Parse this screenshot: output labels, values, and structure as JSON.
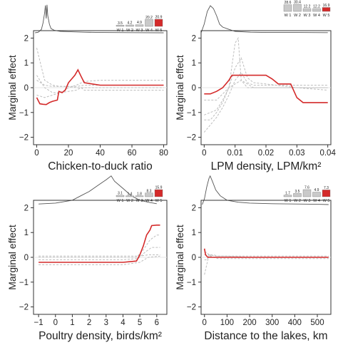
{
  "chart_data": [
    {
      "type": "line",
      "xlabel": "Chicken-to-duck ratio",
      "ylabel": "Marginal effect",
      "xlim": [
        -2,
        82
      ],
      "ylim": [
        -2.3,
        2.3
      ],
      "xticks": [
        0,
        20,
        40,
        60,
        80
      ],
      "xtick_labels": [
        "0",
        "20",
        "40",
        "60",
        "80"
      ],
      "yticks": [
        -2,
        -1,
        0,
        1,
        2
      ],
      "ytick_labels": [
        "−2",
        "−1",
        "0",
        "1",
        "2"
      ],
      "weights": {
        "names": [
          "W 1",
          "W 2",
          "W 3",
          "W 4",
          "W 5"
        ],
        "labels": [
          "3.5",
          "4.2",
          "4.9",
          "20.2",
          "20.9"
        ],
        "values": [
          3.5,
          4.2,
          4.9,
          20.2,
          20.9
        ]
      },
      "density": [
        [
          -1,
          0
        ],
        [
          1,
          0.02
        ],
        [
          3,
          0.12
        ],
        [
          4,
          0.35
        ],
        [
          5,
          0.7
        ],
        [
          5.5,
          0.96
        ],
        [
          6,
          0.5
        ],
        [
          6.5,
          0.98
        ],
        [
          7,
          0.6
        ],
        [
          8,
          0.3
        ],
        [
          9,
          0.15
        ],
        [
          11,
          0.09
        ],
        [
          15,
          0.05
        ],
        [
          20,
          0.04
        ],
        [
          25,
          0.03
        ],
        [
          30,
          0.02
        ],
        [
          40,
          0.01
        ],
        [
          60,
          0.005
        ],
        [
          80,
          0
        ]
      ],
      "series": [
        {
          "name": "",
          "x": [
            0,
            2,
            4,
            6,
            8,
            10,
            13,
            14,
            16,
            18,
            20,
            24,
            26,
            28,
            30,
            40,
            50,
            60,
            70,
            80
          ],
          "y": [
            -0.4,
            -0.65,
            -0.67,
            -0.68,
            -0.6,
            -0.55,
            -0.5,
            -0.15,
            -0.2,
            -0.1,
            0.2,
            0.5,
            0.72,
            0.45,
            0.2,
            0.1,
            0.1,
            0.1,
            0.1,
            0.1
          ]
        },
        {
          "name": "",
          "x": [
            0,
            5,
            10,
            15,
            20,
            25,
            28,
            30,
            40,
            60,
            80
          ],
          "y": [
            1.6,
            0.3,
            0.1,
            0.05,
            0.05,
            0.0,
            0.0,
            -0.1,
            -0.1,
            -0.1,
            -0.1
          ]
        },
        {
          "name": "",
          "x": [
            0,
            5,
            10,
            15,
            20,
            25,
            30,
            40,
            60,
            80
          ],
          "y": [
            0.5,
            0.0,
            -0.2,
            -0.2,
            0.0,
            0.1,
            0.25,
            0.3,
            0.3,
            0.3
          ]
        },
        {
          "name": "",
          "x": [
            0,
            5,
            10,
            15,
            20,
            25,
            28,
            30,
            40,
            60,
            80
          ],
          "y": [
            -0.3,
            -0.4,
            -0.3,
            -0.2,
            -0.15,
            -0.1,
            0.0,
            0.0,
            0.0,
            0.0,
            0.0
          ]
        },
        {
          "name": "",
          "x": [
            0,
            5,
            10,
            15,
            20,
            25,
            30,
            40,
            60,
            80
          ],
          "y": [
            0.3,
            0.1,
            0.05,
            0.05,
            0.05,
            0.05,
            0.1,
            0.1,
            0.1,
            0.1
          ]
        }
      ]
    },
    {
      "type": "line",
      "xlabel": "LPM density, LPM/km²",
      "ylabel": "Marginal effect",
      "xlim": [
        -0.001,
        0.041
      ],
      "ylim": [
        -2.3,
        2.3
      ],
      "xticks": [
        0,
        0.01,
        0.02,
        0.03,
        0.04
      ],
      "xtick_labels": [
        "0",
        "0.01",
        "0.02",
        "0.03",
        "0.04"
      ],
      "yticks": [
        -2,
        -1,
        0,
        1,
        2
      ],
      "ytick_labels": [
        "−2",
        "−1",
        "0",
        "1",
        "2"
      ],
      "weights": {
        "names": [
          "W 1",
          "W 2",
          "W 3",
          "W 4",
          "W 5"
        ],
        "labels": [
          "28.6",
          "30.4",
          "12.2",
          "12.2",
          "16.9"
        ],
        "values": [
          28.6,
          30.4,
          12.2,
          12.2,
          16.9
        ]
      },
      "density": [
        [
          -0.001,
          0
        ],
        [
          0,
          0.3
        ],
        [
          0.001,
          0.75
        ],
        [
          0.002,
          0.95
        ],
        [
          0.003,
          0.85
        ],
        [
          0.004,
          0.6
        ],
        [
          0.005,
          0.3
        ],
        [
          0.006,
          0.2
        ],
        [
          0.008,
          0.12
        ],
        [
          0.01,
          0.05
        ],
        [
          0.015,
          0.02
        ],
        [
          0.02,
          0.01
        ],
        [
          0.03,
          0.01
        ],
        [
          0.04,
          0.005
        ]
      ],
      "series": [
        {
          "name": "",
          "x": [
            0,
            0.002,
            0.004,
            0.006,
            0.008,
            0.009,
            0.012,
            0.016,
            0.02,
            0.022,
            0.024,
            0.028,
            0.03,
            0.032,
            0.04
          ],
          "y": [
            -0.25,
            -0.25,
            -0.15,
            0.0,
            0.3,
            0.5,
            0.5,
            0.5,
            0.5,
            0.35,
            0.15,
            0.15,
            -0.4,
            -0.6,
            -0.6
          ]
        },
        {
          "name": "",
          "x": [
            0,
            0.002,
            0.004,
            0.006,
            0.008,
            0.01,
            0.011,
            0.012,
            0.014,
            0.016,
            0.02,
            0.03,
            0.04
          ],
          "y": [
            -1.3,
            -1.3,
            -1.0,
            -0.6,
            0.0,
            1.8,
            2.0,
            0.3,
            0.0,
            0.0,
            0.0,
            0.0,
            0.0
          ]
        },
        {
          "name": "",
          "x": [
            0,
            0.002,
            0.004,
            0.006,
            0.008,
            0.01,
            0.012,
            0.014,
            0.016,
            0.02,
            0.03,
            0.04
          ],
          "y": [
            -1.8,
            -1.5,
            -1.2,
            -0.8,
            -0.3,
            0.3,
            0.6,
            0.2,
            0.1,
            0.1,
            0.1,
            0.1
          ]
        },
        {
          "name": "",
          "x": [
            0,
            0.002,
            0.004,
            0.006,
            0.008,
            0.01,
            0.012,
            0.014,
            0.016,
            0.02,
            0.03,
            0.04
          ],
          "y": [
            -1.1,
            -1.0,
            -0.9,
            -0.5,
            0.0,
            0.8,
            1.2,
            0.4,
            0.2,
            0.15,
            0.0,
            -0.1
          ]
        },
        {
          "name": "",
          "x": [
            0,
            0.004,
            0.008,
            0.012,
            0.016,
            0.02,
            0.03,
            0.04
          ],
          "y": [
            -0.5,
            -0.5,
            0.0,
            0.3,
            0.0,
            0.0,
            0.0,
            0.0
          ]
        }
      ]
    },
    {
      "type": "line",
      "xlabel": "Poultry density, birds/km²",
      "ylabel": "Marginal effect",
      "xlim": [
        -1.3,
        6.6
      ],
      "ylim": [
        -2.3,
        2.3
      ],
      "xticks": [
        -1,
        0,
        1,
        2,
        3,
        4,
        5,
        6
      ],
      "xtick_labels": [
        "−1",
        "0",
        "1",
        "2",
        "3",
        "4",
        "5",
        "6"
      ],
      "yticks": [
        -2,
        -1,
        0,
        1,
        2
      ],
      "ytick_labels": [
        "−2",
        "−1",
        "0",
        "1",
        "2"
      ],
      "weights": {
        "names": [
          "W 1",
          "W 2",
          "W 3",
          "W 4",
          "W 5"
        ],
        "labels": [
          "3.1",
          "1.4",
          "1.8",
          "8.3",
          "15.9"
        ],
        "values": [
          3.1,
          1.4,
          1.8,
          8.3,
          15.9
        ]
      },
      "density": [
        [
          -1,
          0.02
        ],
        [
          0,
          0.05
        ],
        [
          1,
          0.15
        ],
        [
          1.5,
          0.3
        ],
        [
          2,
          0.45
        ],
        [
          2.5,
          0.65
        ],
        [
          3,
          0.85
        ],
        [
          3.3,
          0.98
        ],
        [
          3.5,
          0.8
        ],
        [
          4,
          0.55
        ],
        [
          4.5,
          0.3
        ],
        [
          5,
          0.15
        ],
        [
          5.5,
          0.08
        ],
        [
          6,
          0.03
        ]
      ],
      "series": [
        {
          "name": "",
          "x": [
            -1,
            0,
            1,
            2,
            3,
            4,
            4.8,
            5.0,
            5.2,
            5.4,
            5.6,
            5.7,
            6.0,
            6.2
          ],
          "y": [
            -0.2,
            -0.2,
            -0.2,
            -0.2,
            -0.2,
            -0.2,
            -0.15,
            0.1,
            0.45,
            0.9,
            1.1,
            1.28,
            1.3,
            1.3
          ]
        },
        {
          "name": "",
          "x": [
            -1,
            0,
            1,
            2,
            3,
            4,
            4.8,
            5.2,
            5.6,
            6.0,
            6.2
          ],
          "y": [
            0.0,
            0.0,
            0.0,
            0.0,
            0.0,
            0.0,
            0.0,
            0.3,
            0.7,
            0.9,
            0.9
          ]
        },
        {
          "name": "",
          "x": [
            -1,
            0,
            1,
            2,
            3,
            4,
            4.9,
            5.3,
            5.7,
            6.2
          ],
          "y": [
            -0.1,
            -0.1,
            -0.1,
            -0.1,
            -0.1,
            -0.1,
            -0.05,
            0.2,
            0.4,
            0.4
          ]
        },
        {
          "name": "",
          "x": [
            -1,
            0,
            1,
            2,
            3,
            4,
            5,
            5.5,
            6.2
          ],
          "y": [
            -0.3,
            -0.3,
            -0.3,
            -0.3,
            -0.3,
            -0.3,
            -0.2,
            0.0,
            0.05
          ]
        },
        {
          "name": "",
          "x": [
            -1,
            0,
            1,
            2,
            3,
            4,
            5,
            5.5,
            6.2
          ],
          "y": [
            0.05,
            0.05,
            0.05,
            0.05,
            0.05,
            0.05,
            0.05,
            0.1,
            0.1
          ]
        }
      ]
    },
    {
      "type": "line",
      "xlabel": "Distance to the lakes, km",
      "ylabel": "Marginal effect",
      "xlim": [
        -15,
        560
      ],
      "ylim": [
        -2.3,
        2.3
      ],
      "xticks": [
        0,
        100,
        200,
        300,
        400,
        500
      ],
      "xtick_labels": [
        "0",
        "100",
        "200",
        "300",
        "400",
        "500"
      ],
      "yticks": [
        -2,
        -1,
        0,
        1,
        2
      ],
      "ytick_labels": [
        "−2",
        "−1",
        "0",
        "1",
        "2"
      ],
      "weights": {
        "names": [
          "W 1",
          "W 2",
          "W 3",
          "W 4",
          "W 5"
        ],
        "labels": [
          "1.7",
          "3.5",
          "7.6",
          "4.9",
          "7.3"
        ],
        "values": [
          1.7,
          3.5,
          7.6,
          4.9,
          7.3
        ]
      },
      "density": [
        [
          -10,
          0
        ],
        [
          0,
          0.2
        ],
        [
          10,
          0.6
        ],
        [
          20,
          0.9
        ],
        [
          25,
          0.98
        ],
        [
          35,
          0.8
        ],
        [
          50,
          0.5
        ],
        [
          70,
          0.3
        ],
        [
          100,
          0.15
        ],
        [
          150,
          0.08
        ],
        [
          200,
          0.05
        ],
        [
          300,
          0.03
        ],
        [
          400,
          0.02
        ],
        [
          500,
          0.01
        ],
        [
          550,
          0
        ]
      ],
      "series": [
        {
          "name": "",
          "x": [
            0,
            5,
            15,
            30,
            50,
            80,
            100,
            200,
            300,
            400,
            500,
            550
          ],
          "y": [
            0.35,
            0.1,
            0.0,
            0.0,
            0.0,
            0.0,
            0.0,
            0.0,
            0.0,
            0.0,
            0.0,
            0.0
          ]
        },
        {
          "name": "",
          "x": [
            0,
            10,
            20,
            40,
            60,
            80,
            100,
            200,
            300,
            400,
            500,
            550
          ],
          "y": [
            -0.7,
            -0.3,
            0.1,
            0.0,
            -0.05,
            -0.05,
            -0.05,
            -0.05,
            -0.05,
            -0.05,
            -0.05,
            -0.05
          ]
        },
        {
          "name": "",
          "x": [
            0,
            10,
            20,
            40,
            60,
            80,
            100,
            200,
            300,
            400,
            500,
            550
          ],
          "y": [
            0.2,
            0.2,
            0.1,
            0.1,
            0.05,
            0.05,
            0.05,
            0.05,
            0.05,
            0.05,
            0.05,
            0.05
          ]
        },
        {
          "name": "",
          "x": [
            0,
            10,
            20,
            40,
            80,
            120,
            200,
            300,
            400,
            500,
            550
          ],
          "y": [
            -0.1,
            -0.1,
            0.05,
            0.0,
            0.0,
            0.0,
            0.0,
            0.0,
            0.0,
            0.0,
            0.0
          ]
        },
        {
          "name": "",
          "x": [
            0,
            20,
            50,
            100,
            200,
            300,
            400,
            500,
            550
          ],
          "y": [
            0.1,
            0.1,
            0.05,
            0.05,
            0.0,
            0.0,
            0.0,
            0.0,
            0.0
          ]
        }
      ]
    }
  ],
  "colors": {
    "main": "#d42a2a",
    "other": "#bdbdbd",
    "density": "#555555",
    "weight_bar": "#c9c9c9",
    "weight_bar_main": "#d42a2a"
  }
}
